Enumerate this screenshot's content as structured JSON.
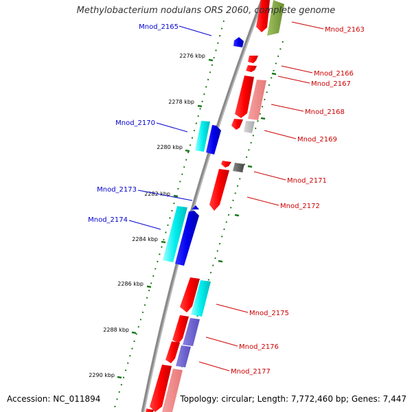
{
  "title": "Methylobacterium nodulans ORS 2060, complete genome",
  "footer": {
    "accession": "Accession: NC_011894",
    "summary": "Topology: circular; Length: 7,772,460 bp; Genes: 7,447"
  },
  "colors": {
    "backbone": "#8a8a8a",
    "tick": "#1a7a1a",
    "label_plus": "#0000cc",
    "label_minus": "#cc0000"
  },
  "kbp_ticks": [
    "2276 kbp",
    "2278 kbp",
    "2280 kbp",
    "2282 kbp",
    "2284 kbp",
    "2286 kbp",
    "2288 kbp",
    "2290 kbp"
  ],
  "left_genes": [
    "Mnod_2165",
    "Mnod_2170",
    "Mnod_2173",
    "Mnod_2174"
  ],
  "right_genes": [
    "Mnod_2163",
    "Mnod_2166",
    "Mnod_2167",
    "Mnod_2168",
    "Mnod_2169",
    "Mnod_2171",
    "Mnod_2172",
    "Mnod_2175",
    "Mnod_2176",
    "Mnod_2177"
  ]
}
